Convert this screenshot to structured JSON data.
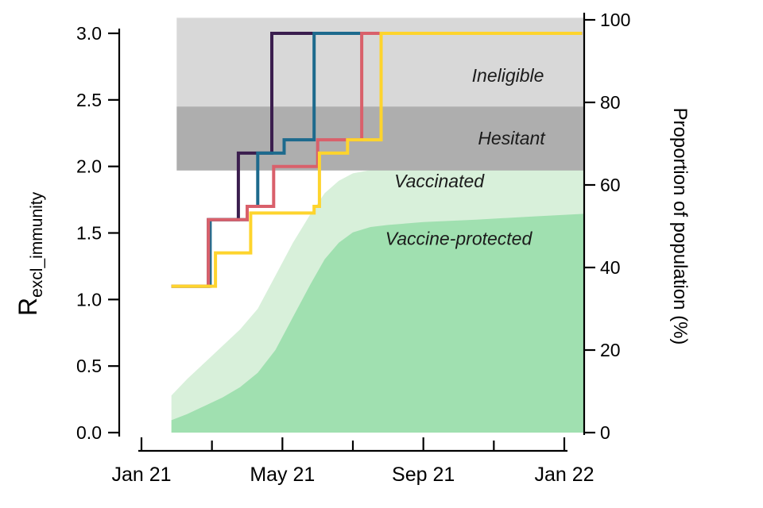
{
  "figure": {
    "background": "#ffffff",
    "axes": {
      "left": {
        "title_main": "R",
        "title_sub": "excl_immunity",
        "ticks": [
          "0.0",
          "0.5",
          "1.0",
          "1.5",
          "2.0",
          "2.5",
          "3.0"
        ],
        "tick_values": [
          0,
          0.5,
          1,
          1.5,
          2,
          2.5,
          3
        ],
        "range": [
          0,
          3
        ]
      },
      "right": {
        "title": "Proportion of population (%)",
        "ticks": [
          "0",
          "20",
          "40",
          "60",
          "80",
          "100"
        ],
        "tick_values": [
          0,
          20,
          40,
          60,
          80,
          100
        ],
        "range": [
          0,
          100
        ]
      },
      "bottom": {
        "tick_labels": [
          "Jan 21",
          "May 21",
          "Sep 21",
          "Jan 22"
        ],
        "major_months": [
          0,
          4,
          8,
          12
        ],
        "minor_months": [
          2,
          6,
          10
        ]
      }
    }
  },
  "chart_data": {
    "type": "line",
    "title": "",
    "x_unit": "months since Jan 2021",
    "xlim_months": [
      0,
      12.5
    ],
    "ylim_left": [
      0,
      3
    ],
    "ylim_right": [
      0,
      100
    ],
    "left_axis_label": "R_excl_immunity",
    "right_axis_label": "Proportion of population (%)",
    "x_tick_labels": [
      "Jan 21",
      "May 21",
      "Sep 21",
      "Jan 22"
    ],
    "grid": false,
    "legend": "none",
    "bands": [
      {
        "name": "Ineligible",
        "from_pct": 79,
        "to_pct": 100.5,
        "color": "#d8d8d8",
        "start_month": 1.0,
        "end_month": 12.56
      },
      {
        "name": "Hesitant",
        "from_pct": 63.5,
        "to_pct": 79,
        "color": "#aeaeae",
        "start_month": 1.0,
        "end_month": 12.56
      }
    ],
    "areas": [
      {
        "name": "Vaccinated",
        "color": "#d8f0da",
        "points": [
          [
            0.85,
            9
          ],
          [
            1.3,
            13
          ],
          [
            1.8,
            17
          ],
          [
            2.3,
            21
          ],
          [
            2.8,
            25
          ],
          [
            3.3,
            30
          ],
          [
            3.8,
            38
          ],
          [
            4.3,
            46
          ],
          [
            4.8,
            53
          ],
          [
            5.2,
            58
          ],
          [
            5.6,
            61
          ],
          [
            6.0,
            62.8
          ],
          [
            6.5,
            63.6
          ],
          [
            7.5,
            64
          ],
          [
            9.0,
            64.2
          ],
          [
            12.56,
            64.5
          ]
        ]
      },
      {
        "name": "Vaccine-protected",
        "color": "#a0e0b0",
        "points": [
          [
            0.85,
            3
          ],
          [
            1.3,
            4.5
          ],
          [
            1.8,
            6.5
          ],
          [
            2.3,
            8.5
          ],
          [
            2.8,
            11
          ],
          [
            3.3,
            14.5
          ],
          [
            3.8,
            20
          ],
          [
            4.3,
            28
          ],
          [
            4.8,
            36
          ],
          [
            5.2,
            42
          ],
          [
            5.6,
            46
          ],
          [
            6.0,
            48.5
          ],
          [
            6.5,
            49.8
          ],
          [
            7.0,
            50.3
          ],
          [
            8.0,
            51
          ],
          [
            9.5,
            51.6
          ],
          [
            11.0,
            52.3
          ],
          [
            12.56,
            53
          ]
        ]
      }
    ],
    "series": [
      {
        "name": "purple",
        "color": "#3b1e4e",
        "steps": [
          [
            0.85,
            1.1
          ],
          [
            1.9,
            1.6
          ],
          [
            2.75,
            2.1
          ],
          [
            3.7,
            3.0
          ]
        ]
      },
      {
        "name": "teal",
        "color": "#1d6a8d",
        "steps": [
          [
            0.85,
            1.1
          ],
          [
            1.95,
            1.6
          ],
          [
            3.0,
            1.7
          ],
          [
            3.3,
            2.1
          ],
          [
            4.05,
            2.2
          ],
          [
            4.9,
            3.0
          ]
        ]
      },
      {
        "name": "red",
        "color": "#d9606b",
        "steps": [
          [
            0.85,
            1.1
          ],
          [
            1.9,
            1.6
          ],
          [
            3.0,
            1.7
          ],
          [
            3.75,
            2.0
          ],
          [
            5.0,
            2.2
          ],
          [
            6.25,
            3.0
          ]
        ]
      },
      {
        "name": "yellow",
        "color": "#fed42d",
        "steps": [
          [
            0.85,
            1.1
          ],
          [
            2.1,
            1.35
          ],
          [
            3.1,
            1.65
          ],
          [
            4.9,
            1.7
          ],
          [
            5.05,
            2.1
          ],
          [
            5.85,
            2.2
          ],
          [
            6.8,
            3.0
          ]
        ]
      }
    ],
    "series_end_month": 12.5,
    "annotations": [
      {
        "text": "Ineligible",
        "month": 10.4,
        "pct": 86.5
      },
      {
        "text": "Hesitant",
        "month": 10.5,
        "pct": 71.3
      },
      {
        "text": "Vaccinated",
        "month": 8.45,
        "pct": 61
      },
      {
        "text": "Vaccine-protected",
        "month": 9.0,
        "pct": 47
      }
    ]
  }
}
